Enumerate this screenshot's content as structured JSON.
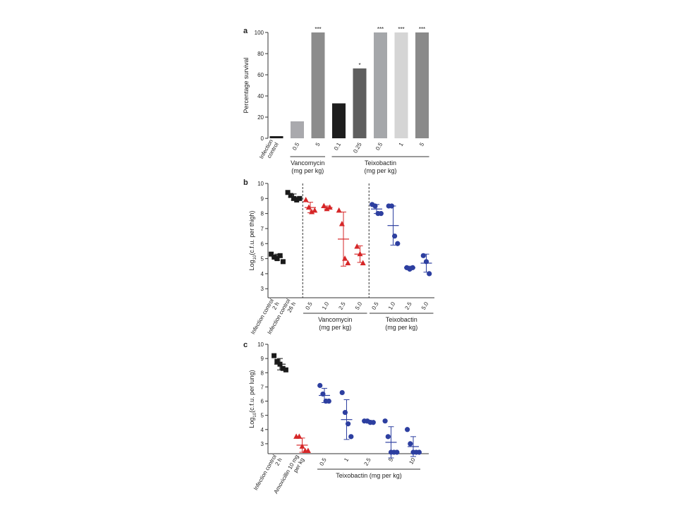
{
  "chart_data": [
    {
      "panel_label": "a",
      "type": "bar",
      "ylabel": "Percentage survival",
      "ylim": [
        0,
        100
      ],
      "yticks": [
        0,
        20,
        40,
        60,
        80,
        100
      ],
      "grid": false,
      "categories": [
        "Infection control",
        "0.5",
        "5",
        "0.1",
        "0.25",
        "0.5",
        "1",
        "5"
      ],
      "values": [
        2,
        16,
        100,
        33,
        66,
        100,
        100,
        100
      ],
      "bar_colors": [
        "#1e1e1e",
        "#a9a9ad",
        "#8c8c8c",
        "#1e1e1e",
        "#5f5f5f",
        "#a5a7aa",
        "#d5d5d5",
        "#8a8a8a"
      ],
      "significance": [
        "",
        "",
        "***",
        "",
        "*",
        "***",
        "***",
        "***"
      ],
      "groups": [
        {
          "label_lines": [
            "Vancomycin",
            "(mg per kg)"
          ],
          "from": 1,
          "to": 2
        },
        {
          "label_lines": [
            "Teixobactin",
            "(mg per kg)"
          ],
          "from": 3,
          "to": 7
        }
      ]
    },
    {
      "panel_label": "b",
      "type": "scatter",
      "ylabel_main": "Log",
      "ylabel_sub": "10",
      "ylabel_rest": "(c.f.u. per thigh)",
      "ylim": [
        2.4,
        10
      ],
      "yticks": [
        3,
        4,
        5,
        6,
        7,
        8,
        9,
        10
      ],
      "grid": false,
      "categories": [
        "Infection control 2 h",
        "Infection control 26 h",
        "0.5",
        "1.0",
        "2.5",
        "5.0",
        "0.5",
        "1.0",
        "2.5",
        "5.0"
      ],
      "series": [
        {
          "marker": "square",
          "color": "#1a1a1a",
          "x": [
            0,
            0,
            0,
            0,
            0
          ],
          "y": [
            5.3,
            5.1,
            5.0,
            5.2,
            4.8
          ],
          "mean": 5.1,
          "sd": 0.2
        },
        {
          "marker": "square",
          "color": "#1a1a1a",
          "x": [
            1,
            1,
            1,
            1,
            1
          ],
          "y": [
            9.4,
            9.2,
            9.0,
            8.9,
            9.0
          ],
          "mean": 9.1,
          "sd": 0.2
        },
        {
          "marker": "triangle",
          "color": "#d62728",
          "x": [
            2,
            2,
            2,
            2
          ],
          "y": [
            8.9,
            8.4,
            8.1,
            8.2
          ],
          "mean": 8.4,
          "sd": 0.35
        },
        {
          "marker": "triangle",
          "color": "#d62728",
          "x": [
            3,
            3,
            3
          ],
          "y": [
            8.5,
            8.3,
            8.4
          ],
          "mean": 8.4,
          "sd": 0.1
        },
        {
          "marker": "triangle",
          "color": "#d62728",
          "x": [
            4,
            4,
            4,
            4
          ],
          "y": [
            8.2,
            7.3,
            5.0,
            4.7
          ],
          "mean": 6.3,
          "sd": 1.8
        },
        {
          "marker": "triangle",
          "color": "#d62728",
          "x": [
            5,
            5,
            5
          ],
          "y": [
            5.8,
            5.3,
            4.7
          ],
          "mean": 5.3,
          "sd": 0.55
        },
        {
          "marker": "circle",
          "color": "#2d3fa0",
          "x": [
            6,
            6,
            6,
            6
          ],
          "y": [
            8.6,
            8.5,
            8.0,
            8.0
          ],
          "mean": 8.3,
          "sd": 0.3
        },
        {
          "marker": "circle",
          "color": "#2d3fa0",
          "x": [
            7,
            7,
            7,
            7
          ],
          "y": [
            8.5,
            8.5,
            6.5,
            6.0
          ],
          "mean": 7.2,
          "sd": 1.3
        },
        {
          "marker": "circle",
          "color": "#2d3fa0",
          "x": [
            8,
            8,
            8
          ],
          "y": [
            4.4,
            4.3,
            4.4
          ],
          "mean": 4.4,
          "sd": 0.1
        },
        {
          "marker": "circle",
          "color": "#2d3fa0",
          "x": [
            9,
            9,
            9
          ],
          "y": [
            5.2,
            4.8,
            4.0
          ],
          "mean": 4.7,
          "sd": 0.6
        }
      ],
      "groups": [
        {
          "label_lines": [
            "Vancomycin",
            "(mg per kg)"
          ],
          "from": 2,
          "to": 5
        },
        {
          "label_lines": [
            "Teixobactin",
            "(mg per kg)"
          ],
          "from": 6,
          "to": 9
        }
      ],
      "dashed_separators_after": [
        1,
        5
      ]
    },
    {
      "panel_label": "c",
      "type": "scatter",
      "ylabel_main": "Log",
      "ylabel_sub": "10",
      "ylabel_rest": "(c.f.u. per lung)",
      "ylim": [
        2.3,
        10
      ],
      "yticks": [
        3,
        4,
        5,
        6,
        7,
        8,
        9,
        10
      ],
      "grid": false,
      "categories": [
        "Infection control 2 h",
        "Amoxicillin 10 mg per kg",
        "0.5",
        "1",
        "2.5",
        "5",
        "10"
      ],
      "series": [
        {
          "marker": "square",
          "color": "#1a1a1a",
          "x": [
            0,
            0,
            0,
            0,
            0
          ],
          "y": [
            9.2,
            8.8,
            8.6,
            8.3,
            8.2
          ],
          "mean": 8.6,
          "sd": 0.4
        },
        {
          "marker": "triangle",
          "color": "#d62728",
          "x": [
            1,
            1,
            1,
            1,
            1
          ],
          "y": [
            3.5,
            3.5,
            2.8,
            2.5,
            2.5
          ],
          "mean": 2.9,
          "sd": 0.5
        },
        {
          "marker": "circle",
          "color": "#2d3fa0",
          "x": [
            2,
            2,
            2,
            2
          ],
          "y": [
            7.1,
            6.5,
            6.0,
            6.0
          ],
          "mean": 6.4,
          "sd": 0.5
        },
        {
          "marker": "circle",
          "color": "#2d3fa0",
          "x": [
            3,
            3,
            3,
            3
          ],
          "y": [
            6.6,
            5.2,
            4.4,
            3.5
          ],
          "mean": 4.7,
          "sd": 1.4
        },
        {
          "marker": "circle",
          "color": "#2d3fa0",
          "x": [
            4,
            4,
            4,
            4
          ],
          "y": [
            4.6,
            4.6,
            4.5,
            4.5
          ],
          "mean": 4.55,
          "sd": 0.1
        },
        {
          "marker": "circle",
          "color": "#2d3fa0",
          "x": [
            5,
            5,
            5,
            5,
            5
          ],
          "y": [
            4.6,
            3.5,
            2.4,
            2.4,
            2.4
          ],
          "mean": 3.1,
          "sd": 1.1
        },
        {
          "marker": "circle",
          "color": "#2d3fa0",
          "x": [
            6,
            6,
            6,
            6,
            6
          ],
          "y": [
            4.0,
            3.0,
            2.4,
            2.4,
            2.4
          ],
          "mean": 2.8,
          "sd": 0.7
        }
      ],
      "groups": [
        {
          "label_lines": [
            "Teixobactin (mg per kg)"
          ],
          "from": 2,
          "to": 6
        }
      ],
      "dashed_separators_after": []
    }
  ]
}
